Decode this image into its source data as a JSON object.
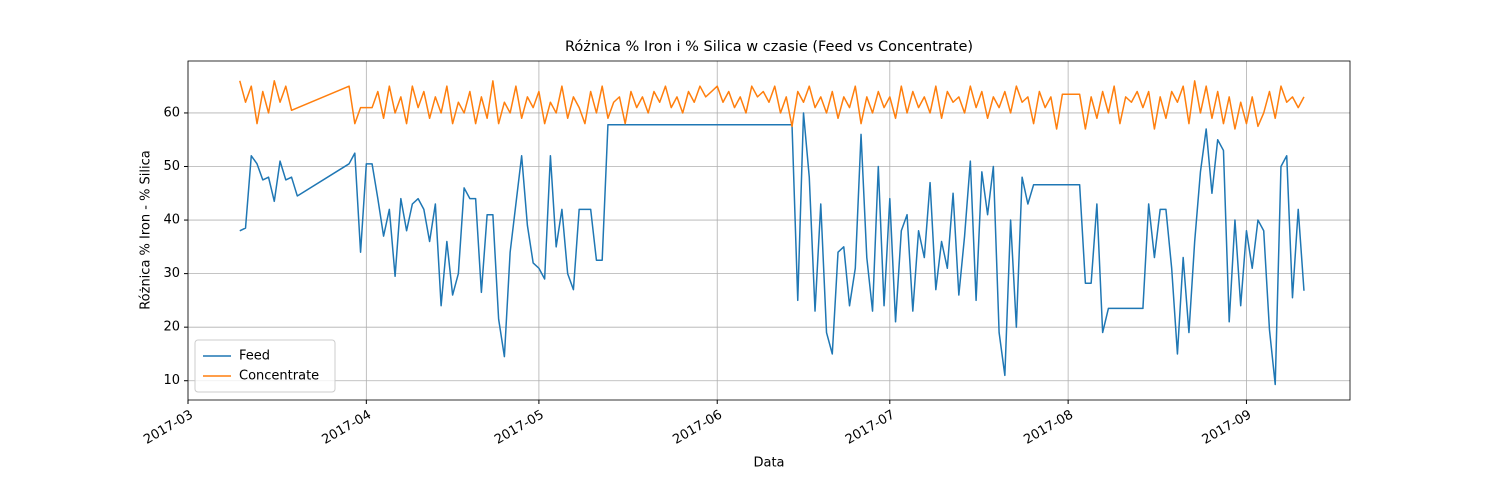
{
  "chart_data": {
    "type": "line",
    "title": "Różnica % Iron i % Silica w czasie (Feed vs Concentrate)",
    "xlabel": "Data",
    "ylabel": "Różnica % Iron - % Silica",
    "xlim": [
      "2017-03-01",
      "2017-09-19"
    ],
    "xticks": [
      {
        "value": "2017-03-01",
        "label": "2017-03"
      },
      {
        "value": "2017-04-01",
        "label": "2017-04"
      },
      {
        "value": "2017-05-01",
        "label": "2017-05"
      },
      {
        "value": "2017-06-01",
        "label": "2017-06"
      },
      {
        "value": "2017-07-01",
        "label": "2017-07"
      },
      {
        "value": "2017-08-01",
        "label": "2017-08"
      },
      {
        "value": "2017-09-01",
        "label": "2017-09"
      }
    ],
    "ylim": [
      6.4,
      69.7
    ],
    "yticks": [
      10,
      20,
      30,
      40,
      50,
      60
    ],
    "grid": true,
    "legend": "lower left",
    "series": [
      {
        "name": "Feed",
        "color": "#1f77b4",
        "x": [
          "2017-03-10",
          "2017-03-11",
          "2017-03-12",
          "2017-03-13",
          "2017-03-14",
          "2017-03-15",
          "2017-03-16",
          "2017-03-17",
          "2017-03-18",
          "2017-03-19",
          "2017-03-20",
          "2017-03-29",
          "2017-03-30",
          "2017-03-31",
          "2017-04-01",
          "2017-04-02",
          "2017-04-03",
          "2017-04-04",
          "2017-04-05",
          "2017-04-06",
          "2017-04-07",
          "2017-04-08",
          "2017-04-09",
          "2017-04-10",
          "2017-04-11",
          "2017-04-12",
          "2017-04-13",
          "2017-04-14",
          "2017-04-15",
          "2017-04-16",
          "2017-04-17",
          "2017-04-18",
          "2017-04-19",
          "2017-04-20",
          "2017-04-21",
          "2017-04-22",
          "2017-04-23",
          "2017-04-24",
          "2017-04-25",
          "2017-04-26",
          "2017-04-27",
          "2017-04-28",
          "2017-04-29",
          "2017-04-30",
          "2017-05-01",
          "2017-05-02",
          "2017-05-03",
          "2017-05-04",
          "2017-05-05",
          "2017-05-06",
          "2017-05-07",
          "2017-05-08",
          "2017-05-09",
          "2017-05-10",
          "2017-05-11",
          "2017-05-12",
          "2017-05-13",
          "2017-06-14",
          "2017-06-15",
          "2017-06-16",
          "2017-06-17",
          "2017-06-18",
          "2017-06-19",
          "2017-06-20",
          "2017-06-21",
          "2017-06-22",
          "2017-06-23",
          "2017-06-24",
          "2017-06-25",
          "2017-06-26",
          "2017-06-27",
          "2017-06-28",
          "2017-06-29",
          "2017-06-30",
          "2017-07-01",
          "2017-07-02",
          "2017-07-03",
          "2017-07-04",
          "2017-07-05",
          "2017-07-06",
          "2017-07-07",
          "2017-07-08",
          "2017-07-09",
          "2017-07-10",
          "2017-07-11",
          "2017-07-12",
          "2017-07-13",
          "2017-07-14",
          "2017-07-15",
          "2017-07-16",
          "2017-07-17",
          "2017-07-18",
          "2017-07-19",
          "2017-07-20",
          "2017-07-21",
          "2017-07-22",
          "2017-07-23",
          "2017-07-24",
          "2017-07-25",
          "2017-07-26",
          "2017-08-03",
          "2017-08-04",
          "2017-08-05",
          "2017-08-06",
          "2017-08-07",
          "2017-08-08",
          "2017-08-14",
          "2017-08-15",
          "2017-08-16",
          "2017-08-17",
          "2017-08-18",
          "2017-08-19",
          "2017-08-20",
          "2017-08-21",
          "2017-08-22",
          "2017-08-23",
          "2017-08-24",
          "2017-08-25",
          "2017-08-26",
          "2017-08-27",
          "2017-08-28",
          "2017-08-29",
          "2017-08-30",
          "2017-08-31",
          "2017-09-01",
          "2017-09-02",
          "2017-09-03",
          "2017-09-04",
          "2017-09-05",
          "2017-09-06",
          "2017-09-07",
          "2017-09-08",
          "2017-09-09",
          "2017-09-10",
          "2017-09-11"
        ],
        "values": [
          38,
          38.5,
          52,
          50.5,
          47.5,
          48,
          43.5,
          51,
          47.5,
          48,
          44.5,
          50.5,
          52.5,
          34,
          50.5,
          50.5,
          44,
          37,
          42,
          29.5,
          44,
          38,
          43,
          44,
          42,
          36,
          43,
          24,
          36,
          26,
          30,
          46,
          44,
          44,
          26.5,
          41,
          41,
          21.5,
          14.5,
          34,
          43,
          52,
          39,
          32,
          31,
          29,
          52,
          35,
          42,
          30,
          27,
          42,
          42,
          42,
          32.5,
          32.5,
          57.8,
          57.8,
          25,
          60,
          48,
          23,
          43,
          19,
          15,
          34,
          35,
          24,
          31,
          56,
          33,
          23,
          50,
          24,
          44,
          21,
          38,
          41,
          23,
          38,
          33,
          47,
          27,
          36,
          31,
          45,
          26,
          37,
          51,
          25,
          49,
          41,
          50,
          19,
          11,
          40,
          20,
          48,
          43,
          46.6,
          46.6,
          28.2,
          28.2,
          43,
          19,
          23.5,
          23.5,
          43,
          33,
          42,
          42,
          31,
          15,
          33,
          19,
          36,
          49,
          57,
          45,
          55,
          53,
          21,
          40,
          24,
          38,
          31,
          40,
          38,
          19.5,
          9.3,
          50,
          52,
          25.5,
          42,
          26.8
        ]
      },
      {
        "name": "Concentrate",
        "color": "#ff7f0e",
        "x": [
          "2017-03-10",
          "2017-03-11",
          "2017-03-12",
          "2017-03-13",
          "2017-03-14",
          "2017-03-15",
          "2017-03-16",
          "2017-03-17",
          "2017-03-18",
          "2017-03-19",
          "2017-03-29",
          "2017-03-30",
          "2017-03-31",
          "2017-04-01",
          "2017-04-02",
          "2017-04-03",
          "2017-04-04",
          "2017-04-05",
          "2017-04-06",
          "2017-04-07",
          "2017-04-08",
          "2017-04-09",
          "2017-04-10",
          "2017-04-11",
          "2017-04-12",
          "2017-04-13",
          "2017-04-14",
          "2017-04-15",
          "2017-04-16",
          "2017-04-17",
          "2017-04-18",
          "2017-04-19",
          "2017-04-20",
          "2017-04-21",
          "2017-04-22",
          "2017-04-23",
          "2017-04-24",
          "2017-04-25",
          "2017-04-26",
          "2017-04-27",
          "2017-04-28",
          "2017-04-29",
          "2017-04-30",
          "2017-05-01",
          "2017-05-02",
          "2017-05-03",
          "2017-05-04",
          "2017-05-05",
          "2017-05-06",
          "2017-05-07",
          "2017-05-08",
          "2017-05-09",
          "2017-05-10",
          "2017-05-11",
          "2017-05-12",
          "2017-05-13",
          "2017-05-14",
          "2017-05-15",
          "2017-05-16",
          "2017-05-17",
          "2017-05-18",
          "2017-05-19",
          "2017-05-20",
          "2017-05-21",
          "2017-05-22",
          "2017-05-23",
          "2017-05-24",
          "2017-05-25",
          "2017-05-26",
          "2017-05-27",
          "2017-05-28",
          "2017-05-29",
          "2017-05-30",
          "2017-05-31",
          "2017-06-01",
          "2017-06-02",
          "2017-06-03",
          "2017-06-04",
          "2017-06-05",
          "2017-06-06",
          "2017-06-07",
          "2017-06-08",
          "2017-06-09",
          "2017-06-10",
          "2017-06-11",
          "2017-06-12",
          "2017-06-13",
          "2017-06-14",
          "2017-06-15",
          "2017-06-16",
          "2017-06-17",
          "2017-06-18",
          "2017-06-19",
          "2017-06-20",
          "2017-06-21",
          "2017-06-22",
          "2017-06-23",
          "2017-06-24",
          "2017-06-25",
          "2017-06-26",
          "2017-06-27",
          "2017-06-28",
          "2017-06-29",
          "2017-06-30",
          "2017-07-01",
          "2017-07-02",
          "2017-07-03",
          "2017-07-04",
          "2017-07-05",
          "2017-07-06",
          "2017-07-07",
          "2017-07-08",
          "2017-07-09",
          "2017-07-10",
          "2017-07-11",
          "2017-07-12",
          "2017-07-13",
          "2017-07-14",
          "2017-07-15",
          "2017-07-16",
          "2017-07-17",
          "2017-07-18",
          "2017-07-19",
          "2017-07-20",
          "2017-07-21",
          "2017-07-22",
          "2017-07-23",
          "2017-07-24",
          "2017-07-25",
          "2017-07-26",
          "2017-07-27",
          "2017-07-28",
          "2017-07-29",
          "2017-07-30",
          "2017-07-31",
          "2017-08-01",
          "2017-08-02",
          "2017-08-03",
          "2017-08-04",
          "2017-08-05",
          "2017-08-06",
          "2017-08-07",
          "2017-08-08",
          "2017-08-09",
          "2017-08-10",
          "2017-08-11",
          "2017-08-12",
          "2017-08-13",
          "2017-08-14",
          "2017-08-15",
          "2017-08-16",
          "2017-08-17",
          "2017-08-18",
          "2017-08-19",
          "2017-08-20",
          "2017-08-21",
          "2017-08-22",
          "2017-08-23",
          "2017-08-24",
          "2017-08-25",
          "2017-08-26",
          "2017-08-27",
          "2017-08-28",
          "2017-08-29",
          "2017-08-30",
          "2017-08-31",
          "2017-09-01",
          "2017-09-02",
          "2017-09-03",
          "2017-09-04",
          "2017-09-05",
          "2017-09-06",
          "2017-09-07",
          "2017-09-08",
          "2017-09-09",
          "2017-09-10",
          "2017-09-11"
        ],
        "values": [
          66,
          62,
          65,
          58,
          64,
          60,
          66,
          62,
          65,
          60.5,
          65,
          58,
          61,
          61,
          61,
          64,
          59,
          65,
          60,
          63,
          58,
          65,
          61,
          64,
          59,
          63,
          60,
          65,
          58,
          62,
          60,
          64,
          58,
          63,
          59,
          66,
          58,
          62,
          60,
          65,
          59,
          63,
          61,
          64,
          58,
          62,
          60,
          65,
          59,
          63,
          61,
          58,
          64,
          60,
          65,
          59,
          62,
          63,
          58,
          64,
          61,
          63,
          60,
          64,
          62,
          65,
          61,
          63,
          60,
          64,
          62,
          65,
          63,
          64,
          65,
          62,
          64,
          61,
          63,
          60,
          65,
          63,
          64,
          62,
          65,
          60,
          63,
          57.5,
          64,
          62,
          65,
          61,
          63,
          60,
          64,
          59,
          63,
          61,
          65,
          58,
          63,
          60,
          64,
          61,
          63,
          59,
          65,
          60,
          64,
          61,
          63,
          60,
          65,
          59,
          64,
          62,
          63,
          60,
          65,
          61,
          64,
          59,
          63,
          61,
          64,
          60,
          65,
          62,
          63,
          58,
          64,
          61,
          63,
          57,
          63.5,
          63.5,
          63.5,
          63.5,
          57,
          63,
          59,
          64,
          60,
          65,
          58,
          63,
          62,
          64,
          61,
          64,
          57,
          63,
          59,
          64,
          62,
          65,
          58,
          66,
          60,
          65,
          59,
          64,
          58,
          63,
          57,
          62,
          58,
          63,
          57.5,
          60,
          64,
          59,
          65,
          62,
          63,
          61,
          63
        ]
      }
    ]
  }
}
